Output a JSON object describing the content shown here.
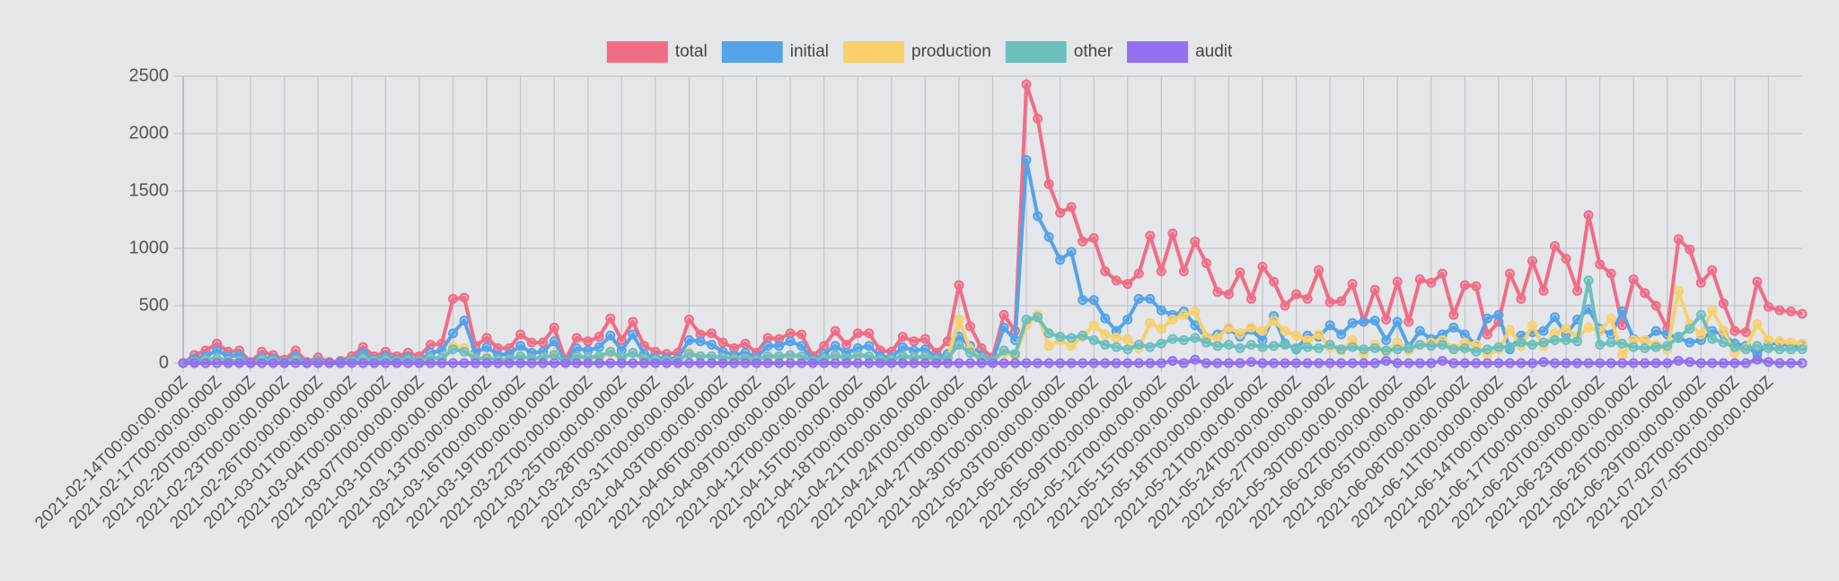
{
  "chart_data": {
    "type": "line",
    "categories": [
      "2021-02-14T00:00:00.000Z",
      null,
      null,
      "2021-02-17T00:00:00.000Z",
      null,
      null,
      "2021-02-20T00:00:00.000Z",
      null,
      null,
      "2021-02-23T00:00:00.000Z",
      null,
      null,
      "2021-02-26T00:00:00.000Z",
      null,
      null,
      "2021-03-01T00:00:00.000Z",
      null,
      null,
      "2021-03-04T00:00:00.000Z",
      null,
      null,
      "2021-03-07T00:00:00.000Z",
      null,
      null,
      "2021-03-10T00:00:00.000Z",
      null,
      null,
      "2021-03-13T00:00:00.000Z",
      null,
      null,
      "2021-03-16T00:00:00.000Z",
      null,
      null,
      "2021-03-19T00:00:00.000Z",
      null,
      null,
      "2021-03-22T00:00:00.000Z",
      null,
      null,
      "2021-03-25T00:00:00.000Z",
      null,
      null,
      "2021-03-28T00:00:00.000Z",
      null,
      null,
      "2021-03-31T00:00:00.000Z",
      null,
      null,
      "2021-04-03T00:00:00.000Z",
      null,
      null,
      "2021-04-06T00:00:00.000Z",
      null,
      null,
      "2021-04-09T00:00:00.000Z",
      null,
      null,
      "2021-04-12T00:00:00.000Z",
      null,
      null,
      "2021-04-15T00:00:00.000Z",
      null,
      null,
      "2021-04-18T00:00:00.000Z",
      null,
      null,
      "2021-04-21T00:00:00.000Z",
      null,
      null,
      "2021-04-24T00:00:00.000Z",
      null,
      null,
      "2021-04-27T00:00:00.000Z",
      null,
      null,
      "2021-04-30T00:00:00.000Z",
      null,
      null,
      "2021-05-03T00:00:00.000Z",
      null,
      null,
      "2021-05-06T00:00:00.000Z",
      null,
      null,
      "2021-05-09T00:00:00.000Z",
      null,
      null,
      "2021-05-12T00:00:00.000Z",
      null,
      null,
      "2021-05-15T00:00:00.000Z",
      null,
      null,
      "2021-05-18T00:00:00.000Z",
      null,
      null,
      "2021-05-21T00:00:00.000Z",
      null,
      null,
      "2021-05-24T00:00:00.000Z",
      null,
      null,
      "2021-05-27T00:00:00.000Z",
      null,
      null,
      "2021-05-30T00:00:00.000Z",
      null,
      null,
      "2021-06-02T00:00:00.000Z",
      null,
      null,
      "2021-06-05T00:00:00.000Z",
      null,
      null,
      "2021-06-08T00:00:00.000Z",
      null,
      null,
      "2021-06-11T00:00:00.000Z",
      null,
      null,
      "2021-06-14T00:00:00.000Z",
      null,
      null,
      "2021-06-17T00:00:00.000Z",
      null,
      null,
      "2021-06-20T00:00:00.000Z",
      null,
      null,
      "2021-06-23T00:00:00.000Z",
      null,
      null,
      "2021-06-26T00:00:00.000Z",
      null,
      null,
      "2021-06-29T00:00:00.000Z",
      null,
      null,
      "2021-07-02T00:00:00.000Z",
      null,
      null,
      "2021-07-05T00:00:00.000Z",
      null,
      null,
      null
    ],
    "series": [
      {
        "name": "total",
        "color": "#f06d85",
        "values": [
          0,
          70,
          110,
          170,
          100,
          110,
          10,
          100,
          70,
          30,
          110,
          10,
          50,
          10,
          20,
          60,
          140,
          60,
          100,
          60,
          90,
          60,
          160,
          170,
          560,
          570,
          150,
          220,
          130,
          130,
          250,
          180,
          180,
          310,
          30,
          220,
          190,
          230,
          390,
          200,
          360,
          150,
          100,
          80,
          90,
          380,
          250,
          260,
          180,
          130,
          170,
          90,
          220,
          210,
          260,
          250,
          60,
          150,
          280,
          160,
          260,
          260,
          110,
          100,
          230,
          190,
          210,
          90,
          190,
          680,
          320,
          130,
          50,
          420,
          280,
          2430,
          2130,
          1560,
          1310,
          1360,
          1060,
          1090,
          800,
          720,
          690,
          780,
          1110,
          800,
          1130,
          800,
          1060,
          870,
          620,
          600,
          790,
          560,
          840,
          710,
          500,
          600,
          560,
          810,
          530,
          540,
          690,
          360,
          640,
          380,
          710,
          360,
          730,
          700,
          780,
          420,
          680,
          670,
          250,
          360,
          780,
          560,
          890,
          630,
          1020,
          910,
          630,
          1290,
          860,
          780,
          330,
          730,
          610,
          500,
          300,
          1080,
          990,
          700,
          810,
          520,
          280,
          270,
          710,
          490,
          460,
          450,
          430
        ]
      },
      {
        "name": "initial",
        "color": "#55a3e8",
        "values": [
          0,
          40,
          60,
          110,
          60,
          70,
          0,
          50,
          40,
          10,
          60,
          0,
          20,
          0,
          10,
          30,
          90,
          30,
          60,
          30,
          50,
          20,
          90,
          110,
          260,
          370,
          90,
          140,
          70,
          80,
          150,
          90,
          100,
          190,
          10,
          130,
          110,
          140,
          240,
          110,
          250,
          80,
          50,
          40,
          40,
          200,
          190,
          160,
          100,
          70,
          90,
          50,
          150,
          150,
          190,
          150,
          30,
          80,
          150,
          90,
          130,
          150,
          60,
          50,
          140,
          110,
          120,
          50,
          80,
          230,
          150,
          70,
          20,
          310,
          200,
          1770,
          1280,
          1100,
          900,
          970,
          550,
          550,
          390,
          280,
          380,
          560,
          560,
          460,
          420,
          450,
          330,
          220,
          250,
          300,
          230,
          290,
          200,
          410,
          170,
          120,
          240,
          230,
          330,
          250,
          350,
          360,
          370,
          200,
          360,
          140,
          280,
          210,
          250,
          310,
          250,
          160,
          390,
          420,
          120,
          240,
          270,
          280,
          400,
          250,
          380,
          470,
          300,
          250,
          450,
          210,
          200,
          280,
          250,
          220,
          180,
          200,
          280,
          250,
          170,
          150,
          80,
          170,
          170,
          150,
          150
        ]
      },
      {
        "name": "production",
        "color": "#f8d06c",
        "values": [
          0,
          10,
          20,
          30,
          20,
          20,
          0,
          20,
          10,
          0,
          20,
          0,
          10,
          0,
          0,
          10,
          30,
          10,
          20,
          10,
          20,
          10,
          40,
          40,
          150,
          130,
          40,
          50,
          30,
          30,
          60,
          40,
          40,
          80,
          0,
          50,
          40,
          50,
          90,
          40,
          90,
          30,
          20,
          20,
          20,
          90,
          60,
          60,
          40,
          30,
          40,
          20,
          50,
          50,
          60,
          60,
          10,
          30,
          60,
          40,
          60,
          60,
          20,
          20,
          50,
          40,
          50,
          20,
          40,
          380,
          120,
          40,
          10,
          90,
          60,
          330,
          420,
          150,
          200,
          150,
          230,
          330,
          250,
          220,
          210,
          130,
          350,
          300,
          380,
          420,
          450,
          230,
          220,
          310,
          260,
          310,
          280,
          370,
          280,
          240,
          200,
          250,
          140,
          110,
          200,
          80,
          160,
          100,
          180,
          110,
          160,
          180,
          200,
          130,
          180,
          160,
          70,
          120,
          290,
          150,
          330,
          150,
          260,
          300,
          230,
          310,
          280,
          390,
          70,
          200,
          200,
          160,
          120,
          630,
          340,
          250,
          460,
          280,
          90,
          130,
          340,
          200,
          190,
          180,
          170
        ]
      },
      {
        "name": "other",
        "color": "#6cbfbd",
        "values": [
          0,
          10,
          30,
          40,
          20,
          20,
          0,
          30,
          20,
          10,
          30,
          0,
          10,
          0,
          0,
          20,
          40,
          20,
          30,
          20,
          30,
          20,
          50,
          40,
          120,
          100,
          40,
          40,
          30,
          30,
          60,
          40,
          50,
          70,
          10,
          60,
          50,
          60,
          100,
          50,
          90,
          40,
          30,
          20,
          20,
          80,
          60,
          60,
          50,
          40,
          40,
          30,
          60,
          60,
          70,
          60,
          20,
          40,
          70,
          40,
          70,
          60,
          30,
          30,
          60,
          50,
          60,
          30,
          50,
          160,
          90,
          40,
          20,
          110,
          80,
          380,
          400,
          260,
          230,
          220,
          240,
          200,
          160,
          140,
          120,
          160,
          140,
          170,
          210,
          200,
          220,
          180,
          150,
          160,
          130,
          160,
          140,
          150,
          160,
          130,
          140,
          130,
          160,
          120,
          140,
          120,
          130,
          110,
          120,
          130,
          160,
          150,
          160,
          120,
          130,
          100,
          120,
          140,
          140,
          180,
          160,
          180,
          200,
          200,
          190,
          720,
          160,
          180,
          170,
          140,
          130,
          140,
          150,
          230,
          300,
          420,
          210,
          180,
          140,
          120,
          150,
          130,
          120,
          120,
          120
        ]
      },
      {
        "name": "audit",
        "color": "#9370f0",
        "values": [
          0,
          0,
          0,
          0,
          0,
          0,
          0,
          0,
          0,
          0,
          0,
          0,
          0,
          0,
          0,
          0,
          0,
          0,
          0,
          0,
          0,
          0,
          0,
          0,
          0,
          0,
          0,
          0,
          0,
          0,
          0,
          0,
          0,
          0,
          0,
          0,
          0,
          0,
          0,
          0,
          0,
          0,
          0,
          0,
          0,
          0,
          0,
          0,
          0,
          0,
          0,
          0,
          0,
          0,
          0,
          0,
          0,
          0,
          0,
          0,
          0,
          0,
          0,
          0,
          0,
          0,
          0,
          0,
          0,
          0,
          0,
          0,
          0,
          0,
          0,
          0,
          0,
          0,
          0,
          0,
          0,
          0,
          0,
          0,
          0,
          0,
          0,
          0,
          20,
          0,
          30,
          0,
          0,
          0,
          0,
          10,
          0,
          0,
          0,
          0,
          0,
          0,
          0,
          0,
          0,
          0,
          0,
          20,
          0,
          0,
          0,
          0,
          20,
          0,
          0,
          0,
          0,
          0,
          0,
          0,
          0,
          10,
          0,
          0,
          0,
          0,
          0,
          0,
          0,
          0,
          0,
          0,
          0,
          20,
          10,
          0,
          0,
          0,
          0,
          0,
          30,
          10,
          0,
          0,
          0
        ]
      }
    ],
    "ylim": [
      0,
      2500
    ],
    "yticks": [
      0,
      500,
      1000,
      1500,
      2000,
      2500
    ],
    "grid": true,
    "legend": "top"
  }
}
